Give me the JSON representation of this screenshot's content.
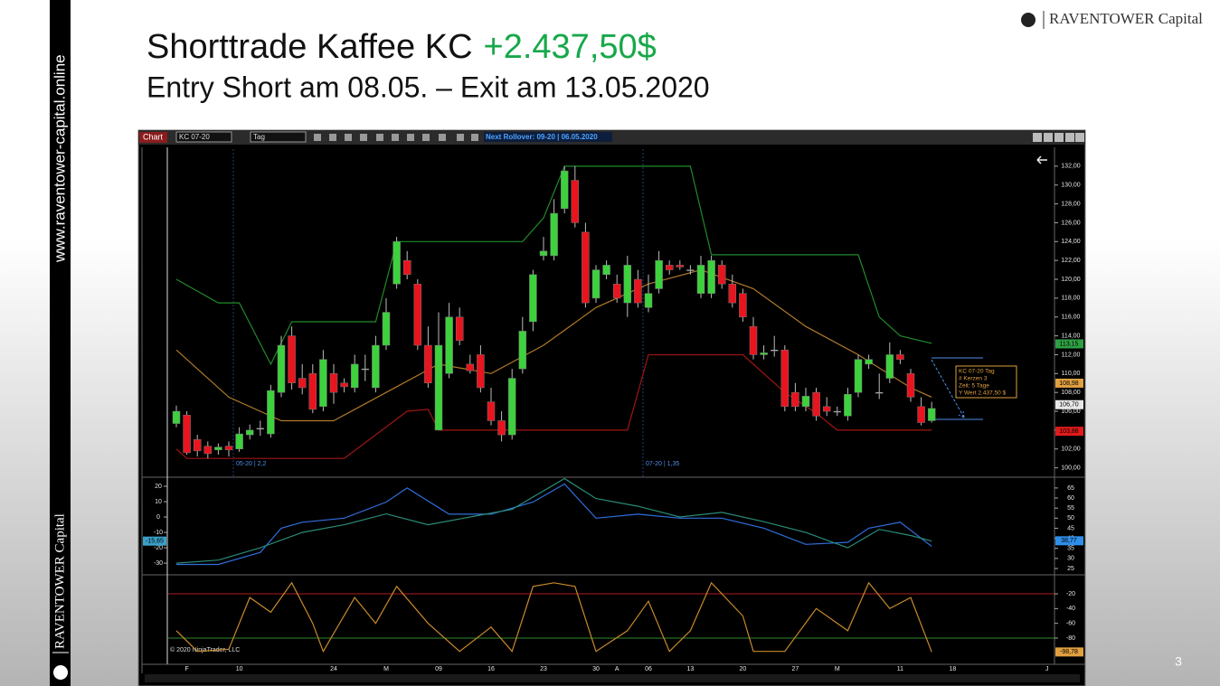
{
  "slide": {
    "title": "Shorttrade Kaffee KC",
    "profit": "+2.437,50$",
    "subtitle": "Entry Short am 08.05. – Exit am 13.05.2020",
    "logo": "RAVENTOWER Capital",
    "sidebar_url": "www.raventower-capital.online",
    "sidebar_brand": "RAVENTOWER Capital",
    "page": "3"
  },
  "toolbar": {
    "tab": "Chart",
    "instrument": "KC 07-20",
    "period": "Tag",
    "rollover": "Next Rollover: 09-20 | 06.05.2020",
    "copyright": "© 2020 NinjaTrader, LLC"
  },
  "chart_data": [
    {
      "type": "candlestick",
      "categories": [
        null,
        "F",
        null,
        null,
        null,
        null,
        "10",
        null,
        null,
        null,
        null,
        null,
        null,
        null,
        null,
        "24",
        null,
        null,
        null,
        null,
        "M",
        null,
        null,
        null,
        null,
        "09",
        null,
        null,
        null,
        null,
        "16",
        null,
        null,
        null,
        null,
        "23",
        null,
        null,
        null,
        null,
        "30",
        null,
        "A",
        null,
        null,
        "06",
        null,
        null,
        null,
        "13",
        null,
        null,
        null,
        null,
        "20",
        null,
        null,
        null,
        null,
        "27",
        null,
        null,
        null,
        "M",
        null,
        null,
        null,
        null,
        null,
        "11",
        null,
        null,
        null,
        null,
        "18",
        null,
        null,
        null,
        null,
        null,
        null,
        null,
        null,
        "J"
      ],
      "open": [
        104.7,
        105.6,
        103,
        102.3,
        101.9,
        102.3,
        102,
        103.5,
        104.2,
        103.6,
        108,
        114,
        109.5,
        110,
        106.5,
        110,
        109,
        108.5,
        110.5,
        108.5,
        113,
        119.5,
        122,
        119.5,
        113,
        104,
        110,
        116,
        111,
        112,
        107,
        105,
        103.5,
        110.5,
        115.5,
        122.5,
        122.5,
        127.5,
        130.5,
        125,
        118,
        120.5,
        119.5,
        117.5,
        120,
        117,
        119,
        121.5,
        121.5,
        121,
        118.5,
        118.5,
        121.5,
        119.5,
        118.5,
        115,
        112,
        112.5,
        112.5,
        108,
        106.5,
        108,
        106.5,
        106,
        105.5,
        108,
        111,
        108,
        109.5,
        112,
        110,
        106.5,
        105,
        null,
        null,
        null,
        null,
        null,
        null,
        null,
        null,
        null,
        null,
        null
      ],
      "high": [
        106.6,
        106,
        103.5,
        102.8,
        102.6,
        102.8,
        104.3,
        104.6,
        105,
        108.8,
        114,
        115,
        111,
        111,
        112.5,
        111,
        109.5,
        112,
        112,
        114,
        118,
        124.5,
        123,
        120,
        115,
        116.5,
        117.5,
        117,
        112,
        113,
        108.5,
        106,
        110.5,
        116,
        121,
        124.5,
        128.5,
        132,
        132,
        126,
        121.5,
        122,
        120.5,
        122.5,
        121,
        120.5,
        123,
        122,
        122,
        121.5,
        122.5,
        122.5,
        122,
        120.5,
        119,
        116,
        113,
        114,
        113,
        109,
        108.5,
        108.5,
        107.5,
        106.5,
        108.5,
        112,
        112,
        110,
        113.3,
        112.5,
        110.5,
        107.5,
        107,
        null,
        null,
        null,
        null,
        null,
        null,
        null,
        null,
        null,
        null,
        null
      ],
      "low": [
        104.3,
        101.4,
        101.2,
        101,
        101.4,
        101.2,
        101.7,
        103,
        103.4,
        103.2,
        107.5,
        108.3,
        107.8,
        105.8,
        106,
        106.8,
        108,
        108,
        109.2,
        108,
        112.5,
        119,
        120,
        112.5,
        108.5,
        104,
        109.5,
        113,
        110,
        108,
        104.5,
        102.8,
        103,
        110,
        114.5,
        122,
        122,
        127,
        125.5,
        117,
        117.5,
        120,
        117.5,
        116,
        117,
        116.5,
        118.5,
        120.5,
        121,
        120.5,
        118,
        118,
        119,
        117,
        115.5,
        111.5,
        111.5,
        111.8,
        106,
        106,
        106,
        105,
        105.5,
        105.5,
        105,
        107.5,
        110.5,
        107.3,
        109,
        111,
        107,
        104.5,
        104.8,
        null,
        null,
        null,
        null,
        null,
        null,
        null,
        null,
        null,
        null,
        null
      ],
      "close": [
        106,
        101.6,
        101.8,
        101.5,
        102.2,
        101.9,
        103.6,
        104,
        104.2,
        108.2,
        113,
        109,
        108.5,
        106.2,
        111.5,
        108,
        108.6,
        111,
        110.5,
        113,
        116.5,
        124,
        120.5,
        113,
        109,
        113,
        116,
        113.5,
        110.3,
        108.5,
        105,
        103.5,
        109.5,
        114.5,
        120.5,
        123,
        127,
        131.5,
        126,
        117.5,
        121,
        121.5,
        118,
        121.5,
        117.5,
        118.5,
        122,
        121,
        121.3,
        121,
        121.5,
        122,
        119.5,
        117.5,
        116,
        112,
        112.2,
        112.5,
        106.5,
        106.5,
        107.6,
        105.5,
        106,
        106,
        107.8,
        111.5,
        111.5,
        108,
        112,
        111.5,
        107.5,
        104.8,
        106.3,
        null,
        null,
        null,
        null,
        null,
        null,
        null,
        null,
        null,
        null,
        null
      ],
      "up_color": "#3ed13e",
      "down_color": "#e8141e",
      "series": [
        {
          "color": "#1f8a2a",
          "x": [
            0,
            4,
            6,
            9,
            11,
            19,
            21,
            33,
            35,
            37,
            49,
            51,
            65,
            67,
            69,
            72
          ],
          "values": [
            120,
            117.5,
            117.5,
            111,
            115.5,
            115.5,
            124,
            124,
            126.5,
            132,
            132,
            122.6,
            122.6,
            116,
            114,
            113.2
          ]
        },
        {
          "color": "#a01414",
          "x": [
            0,
            1,
            16,
            19,
            22,
            24,
            25,
            42,
            43,
            45,
            54,
            58,
            61,
            63,
            72
          ],
          "values": [
            102,
            101,
            101,
            103.5,
            106,
            106.2,
            104,
            104,
            104,
            112,
            112,
            108,
            105.8,
            104,
            104
          ]
        },
        {
          "color": "#b07a2a",
          "x": [
            0,
            5,
            10,
            15,
            20,
            25,
            30,
            35,
            40,
            45,
            50,
            55,
            60,
            65,
            70,
            72
          ],
          "values": [
            112.5,
            107.5,
            105,
            105,
            108,
            111,
            110,
            113,
            117,
            119.5,
            121,
            119,
            115,
            112,
            108.5,
            107.5
          ]
        }
      ],
      "ylim": [
        99.1,
        134
      ],
      "yticks": [
        {
          "value": 100,
          "label": "100,00"
        },
        {
          "value": 102,
          "label": "102,00"
        },
        {
          "value": 104,
          "label": "104,00"
        },
        {
          "value": 106,
          "label": "106,00"
        },
        {
          "value": 108,
          "label": "108,00"
        },
        {
          "value": 110,
          "label": "110,00"
        },
        {
          "value": 112,
          "label": "112,00"
        },
        {
          "value": 114,
          "label": "114,00"
        },
        {
          "value": 116,
          "label": "116,00"
        },
        {
          "value": 118,
          "label": "118,00"
        },
        {
          "value": 120,
          "label": "120,00"
        },
        {
          "value": 122,
          "label": "122,00"
        },
        {
          "value": 124,
          "label": "124,00"
        },
        {
          "value": 126,
          "label": "126,00"
        },
        {
          "value": 128,
          "label": "128,00"
        },
        {
          "value": 130,
          "label": "130,00"
        },
        {
          "value": 132,
          "label": "132,00"
        }
      ],
      "price_tags": [
        {
          "value": 113.15,
          "label": "113,15",
          "color": "#2ea043"
        },
        {
          "value": 108.98,
          "label": "108,98",
          "color": "#e0a040"
        },
        {
          "value": 106.7,
          "label": "106,70",
          "color": "#e8e8e8"
        },
        {
          "value": 103.88,
          "label": "103,88",
          "color": "#e01b1b"
        }
      ],
      "rollover_labels": [
        "05-20 | 2,2",
        "07-20 | 1,35"
      ],
      "info": [
        "KC 07-20 Tag",
        "# Kerzen   3",
        "Zeit:     5 Tage",
        "Y Wert   2.437,50 $"
      ]
    },
    {
      "type": "line",
      "series": [
        {
          "color": "#2f6fdc",
          "axis": "y2",
          "x": [
            0,
            4,
            8,
            10,
            12,
            16,
            20,
            22,
            26,
            30,
            34,
            37,
            40,
            44,
            48,
            52,
            56,
            60,
            64,
            66,
            69,
            72
          ],
          "values": [
            27,
            27,
            33,
            45,
            48,
            50,
            58,
            65,
            52,
            52,
            58,
            67,
            50,
            52,
            50,
            50,
            45,
            37,
            38,
            45,
            48,
            36
          ]
        },
        {
          "color": "#2a8a78",
          "x": [
            0,
            4,
            8,
            12,
            16,
            20,
            24,
            28,
            32,
            37,
            40,
            44,
            48,
            52,
            56,
            60,
            64,
            67,
            70,
            72
          ],
          "values": [
            -30,
            -28,
            -20,
            -10,
            -5,
            2,
            -5,
            0,
            5,
            25,
            12,
            7,
            0,
            3,
            -3,
            -10,
            -20,
            -8,
            -12,
            -15.65
          ]
        }
      ],
      "ylim": [
        -37,
        25.3
      ],
      "yticks": [
        20,
        10,
        0,
        -10,
        -20,
        -30
      ],
      "y2lim": [
        22.3,
        69.9
      ],
      "y2ticks": [
        65,
        60,
        55,
        50,
        45,
        40,
        35,
        30,
        25
      ],
      "tags": [
        {
          "value": -15.65,
          "label": "-15,65",
          "axis": "y",
          "color": "#3aa0c8"
        },
        {
          "value": 38.77,
          "label": "38,77",
          "axis": "y2",
          "color": "#2f8ee8"
        }
      ]
    },
    {
      "type": "line",
      "series": [
        {
          "color": "#c8892c",
          "axis": "y2",
          "x": [
            0,
            2,
            5,
            7,
            9,
            11,
            13,
            14,
            17,
            19,
            21,
            24,
            27,
            30,
            32,
            34,
            36,
            38,
            40,
            43,
            45,
            47,
            49,
            51,
            54,
            55,
            58,
            61,
            64,
            66,
            68,
            70,
            72
          ],
          "values": [
            -70,
            -98,
            -95,
            -25,
            -45,
            -5,
            -60,
            -98,
            -25,
            -60,
            -10,
            -60,
            -98,
            -65,
            -98,
            -10,
            -5,
            -10,
            -98,
            -70,
            -30,
            -98,
            -70,
            -5,
            -50,
            -98,
            -98,
            -40,
            -70,
            -5,
            -40,
            -25,
            -98.78
          ]
        }
      ],
      "y2lim": [
        -115.5,
        4.5
      ],
      "y2ticks": [
        -20,
        -40,
        -60,
        -80
      ],
      "levels": [
        {
          "value": -20,
          "color": "#b01c1c"
        },
        {
          "value": -80,
          "color": "#2e8a2e"
        }
      ],
      "tags": [
        {
          "value": -98.78,
          "label": "-98,78",
          "axis": "y2",
          "color": "#e0a040"
        }
      ]
    }
  ]
}
